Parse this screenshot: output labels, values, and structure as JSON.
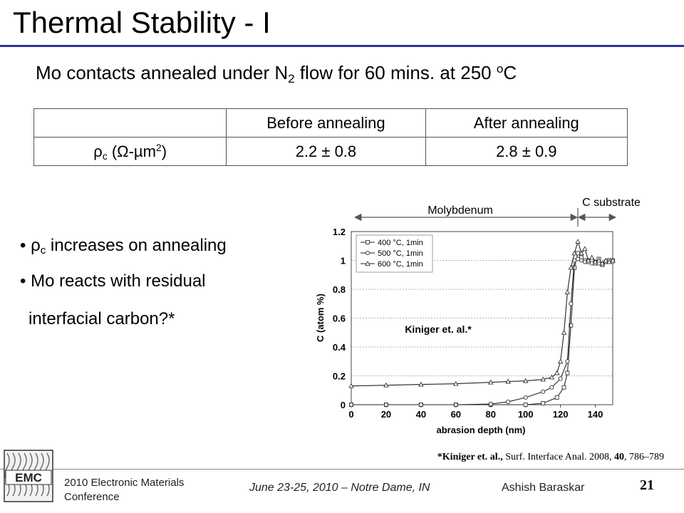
{
  "title": "Thermal Stability - I",
  "subtitle": {
    "pre": "Mo contacts annealed under N",
    "sub": "2",
    "mid": " flow for 60 mins. at 250 ",
    "sup": "o",
    "post": "C"
  },
  "table": {
    "headers": [
      "",
      "Before annealing",
      "After annealing"
    ],
    "row_label": {
      "pre": "ρ",
      "sub": "c",
      "mid": " (Ω-µm",
      "sup": "2",
      "post": ")"
    },
    "values": [
      "2.2 ± 0.8",
      "2.8 ± 0.9"
    ]
  },
  "bullets": [
    {
      "sym": "ρ",
      "sub": "c",
      "text": " increases on annealing"
    },
    {
      "text": "Mo reacts with residual"
    },
    {
      "text": "interfacial carbon?*"
    }
  ],
  "chart_data": {
    "type": "line",
    "xlabel": "abrasion depth (nm)",
    "ylabel": "C (atom %)",
    "xlim": [
      0,
      150
    ],
    "ylim": [
      0,
      1.2
    ],
    "xticks": [
      0,
      20,
      40,
      60,
      80,
      100,
      120,
      140
    ],
    "yticks": [
      0,
      0.2,
      0.4,
      0.6,
      0.8,
      1,
      1.2
    ],
    "yticklabels": [
      "0",
      "0.2",
      "0.4",
      "0.6",
      "0.8",
      "1",
      "1.2"
    ],
    "grid": "horizontal",
    "legend_position": "top-left",
    "annotation": "Kiniger et. al.*",
    "region_labels": [
      "Molybdenum",
      "C substrate"
    ],
    "region_boundary_x": 128,
    "series": [
      {
        "name": "400 °C, 1min",
        "marker": "square",
        "x": [
          0,
          20,
          40,
          60,
          80,
          100,
          110,
          118,
          122,
          124,
          126,
          128,
          130,
          132,
          134,
          136,
          138,
          140,
          142,
          144,
          146,
          148,
          150
        ],
        "y": [
          0.0,
          0.0,
          0.0,
          0.0,
          0.0,
          0.0,
          0.01,
          0.05,
          0.12,
          0.22,
          0.55,
          0.95,
          1.05,
          1.02,
          1.0,
          0.99,
          1.0,
          0.98,
          1.01,
          0.97,
          0.99,
          1.0,
          1.0
        ]
      },
      {
        "name": "500 °C, 1min",
        "marker": "circle",
        "x": [
          0,
          20,
          40,
          60,
          80,
          90,
          100,
          110,
          115,
          120,
          124,
          126,
          128,
          130,
          132,
          134,
          136,
          138,
          140,
          142,
          144,
          146,
          148,
          150
        ],
        "y": [
          0.0,
          0.0,
          0.0,
          0.0,
          0.005,
          0.02,
          0.05,
          0.09,
          0.12,
          0.18,
          0.3,
          0.7,
          1.0,
          1.01,
          1.0,
          0.99,
          1.0,
          0.98,
          0.99,
          0.98,
          0.97,
          0.99,
          1.0,
          0.99
        ]
      },
      {
        "name": "600 °C, 1min",
        "marker": "triangle",
        "x": [
          0,
          20,
          40,
          60,
          80,
          90,
          100,
          110,
          115,
          118,
          120,
          122,
          124,
          126,
          128,
          130,
          132,
          134,
          136,
          138,
          140,
          142,
          144,
          146,
          148,
          150
        ],
        "y": [
          0.13,
          0.135,
          0.14,
          0.145,
          0.155,
          0.16,
          0.165,
          0.175,
          0.19,
          0.22,
          0.3,
          0.5,
          0.78,
          0.95,
          1.05,
          1.13,
          1.05,
          1.08,
          1.0,
          1.02,
          0.99,
          1.0,
          0.98,
          1.0,
          0.99,
          1.0
        ]
      }
    ]
  },
  "footnote": {
    "pre": "*Kiniger et. al.,",
    "journal": " Surf. Interface Anal. 2008, ",
    "vol": "40",
    "pages": ", 786–789"
  },
  "footer": {
    "logo_text": "EMC",
    "conference": "2010 Electronic Materials Conference",
    "date": "June 23-25,  2010 – Notre Dame, IN",
    "author": "Ashish Baraskar",
    "page": "21"
  }
}
